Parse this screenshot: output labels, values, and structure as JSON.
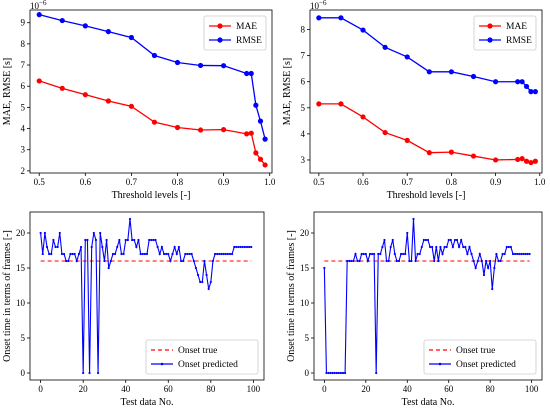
{
  "colors": {
    "mae": "#ff0000",
    "rmse": "#0000ff",
    "onset_true": "#ff0000",
    "onset_pred": "#0000ff"
  },
  "chart_data": [
    {
      "type": "line",
      "xlabel": "Threshold levels [-]",
      "ylabel": "MAE, RMSE [s]",
      "sci_label": "10",
      "sci_exp": "−6",
      "xlim": [
        0.48,
        1.005
      ],
      "ylim": [
        1.9,
        9.6
      ],
      "xticks": [
        0.5,
        0.6,
        0.7,
        0.8,
        0.9,
        1.0
      ],
      "xtick_labels": [
        "0.5",
        "0.6",
        "0.7",
        "0.8",
        "0.9",
        "1.0"
      ],
      "yticks": [
        2,
        3,
        4,
        5,
        6,
        7,
        8,
        9
      ],
      "ytick_labels": [
        "2",
        "3",
        "4",
        "5",
        "6",
        "7",
        "8",
        "9"
      ],
      "legend_position": "top-right",
      "x": [
        0.5,
        0.55,
        0.6,
        0.65,
        0.7,
        0.75,
        0.8,
        0.85,
        0.9,
        0.95,
        0.96,
        0.97,
        0.98,
        0.99
      ],
      "series": [
        {
          "name": "MAE",
          "color": "red",
          "values": [
            6.25,
            5.9,
            5.6,
            5.3,
            5.05,
            4.3,
            4.05,
            3.93,
            3.95,
            3.75,
            3.78,
            2.85,
            2.55,
            2.28
          ]
        },
        {
          "name": "RMSE",
          "color": "blue",
          "values": [
            9.38,
            9.1,
            8.85,
            8.58,
            8.3,
            7.45,
            7.12,
            6.98,
            6.97,
            6.6,
            6.6,
            5.1,
            4.35,
            3.5
          ]
        }
      ]
    },
    {
      "type": "line",
      "xlabel": "Threshold levels [-]",
      "ylabel": "MAE, RMSE [s]",
      "sci_label": "10",
      "sci_exp": "−6",
      "xlim": [
        0.48,
        1.005
      ],
      "ylim": [
        2.5,
        8.75
      ],
      "xticks": [
        0.5,
        0.6,
        0.7,
        0.8,
        0.9,
        1.0
      ],
      "xtick_labels": [
        "0.5",
        "0.6",
        "0.7",
        "0.8",
        "0.9",
        "1.0"
      ],
      "yticks": [
        3,
        4,
        5,
        6,
        7,
        8
      ],
      "ytick_labels": [
        "3",
        "4",
        "5",
        "6",
        "7",
        "8"
      ],
      "legend_position": "top-right",
      "x": [
        0.5,
        0.55,
        0.6,
        0.65,
        0.7,
        0.75,
        0.8,
        0.85,
        0.9,
        0.95,
        0.96,
        0.97,
        0.98,
        0.99
      ],
      "series": [
        {
          "name": "MAE",
          "color": "red",
          "values": [
            5.15,
            5.15,
            4.65,
            4.05,
            3.75,
            3.28,
            3.3,
            3.15,
            3.0,
            3.02,
            3.05,
            2.95,
            2.9,
            2.95
          ]
        },
        {
          "name": "RMSE",
          "color": "blue",
          "values": [
            8.45,
            8.45,
            7.98,
            7.32,
            6.95,
            6.38,
            6.38,
            6.2,
            6.0,
            6.0,
            6.0,
            5.82,
            5.62,
            5.62
          ]
        }
      ]
    },
    {
      "type": "line",
      "xlabel": "Test data No.",
      "ylabel": "Onset time in terms of frames [-]",
      "xlim": [
        -5,
        105
      ],
      "ylim": [
        -1,
        23
      ],
      "xticks": [
        0,
        20,
        40,
        60,
        80,
        100
      ],
      "xtick_labels": [
        "0",
        "20",
        "40",
        "60",
        "80",
        "100"
      ],
      "yticks": [
        0,
        5,
        10,
        15,
        20
      ],
      "ytick_labels": [
        "0",
        "5",
        "10",
        "15",
        "20"
      ],
      "legend_position": "bottom-right",
      "series": [
        {
          "name": "Onset true",
          "color": "red",
          "style": "dashed",
          "x": [
            0,
            99
          ],
          "values": [
            16,
            16
          ]
        },
        {
          "name": "Onset predicted",
          "color": "blue",
          "style": "solid-marker",
          "x": [
            0,
            1,
            2,
            3,
            4,
            5,
            6,
            7,
            8,
            9,
            10,
            11,
            12,
            13,
            14,
            15,
            16,
            17,
            18,
            19,
            20,
            21,
            22,
            23,
            24,
            25,
            26,
            27,
            28,
            29,
            30,
            31,
            32,
            33,
            34,
            35,
            36,
            37,
            38,
            39,
            40,
            41,
            42,
            43,
            44,
            45,
            46,
            47,
            48,
            49,
            50,
            51,
            52,
            53,
            54,
            55,
            56,
            57,
            58,
            59,
            60,
            61,
            62,
            63,
            64,
            65,
            66,
            67,
            68,
            69,
            70,
            71,
            72,
            73,
            74,
            75,
            76,
            77,
            78,
            79,
            80,
            81,
            82,
            83,
            84,
            85,
            86,
            87,
            88,
            89,
            90,
            91,
            92,
            93,
            94,
            95,
            96,
            97,
            98,
            99
          ],
          "values": [
            20,
            17,
            20,
            18,
            17,
            17,
            19,
            18,
            18,
            20,
            17,
            17,
            16,
            16,
            17,
            17,
            17,
            16,
            17,
            18,
            0,
            19,
            19,
            0,
            18,
            20,
            19,
            0,
            20,
            18,
            16,
            19,
            15,
            16,
            17,
            17,
            18,
            19,
            17,
            17,
            19,
            19,
            22,
            19,
            19,
            18,
            19,
            17,
            17,
            17,
            17,
            19,
            19,
            19,
            19,
            18,
            17,
            18,
            17,
            17,
            17,
            16,
            17,
            18,
            17,
            18,
            16,
            16,
            17,
            17,
            17,
            17,
            16,
            15,
            14,
            13,
            13,
            16,
            14,
            12,
            13,
            16,
            17,
            17,
            17,
            17,
            17,
            17,
            17,
            17,
            17,
            18,
            18,
            18,
            18,
            18,
            18,
            18,
            18,
            18
          ]
        }
      ]
    },
    {
      "type": "line",
      "xlabel": "Test data No.",
      "ylabel": "Onset time in terms of frames [-]",
      "xlim": [
        -5,
        105
      ],
      "ylim": [
        -1,
        23
      ],
      "xticks": [
        0,
        20,
        40,
        60,
        80,
        100
      ],
      "xtick_labels": [
        "0",
        "20",
        "40",
        "60",
        "80",
        "100"
      ],
      "yticks": [
        0,
        5,
        10,
        15,
        20
      ],
      "ytick_labels": [
        "0",
        "5",
        "10",
        "15",
        "20"
      ],
      "legend_position": "bottom-right",
      "series": [
        {
          "name": "Onset true",
          "color": "red",
          "style": "dashed",
          "x": [
            0,
            99
          ],
          "values": [
            16,
            16
          ]
        },
        {
          "name": "Onset predicted",
          "color": "blue",
          "style": "solid-marker",
          "x": [
            0,
            1,
            2,
            3,
            4,
            5,
            6,
            7,
            8,
            9,
            10,
            11,
            12,
            13,
            14,
            15,
            16,
            17,
            18,
            19,
            20,
            21,
            22,
            23,
            24,
            25,
            26,
            27,
            28,
            29,
            30,
            31,
            32,
            33,
            34,
            35,
            36,
            37,
            38,
            39,
            40,
            41,
            42,
            43,
            44,
            45,
            46,
            47,
            48,
            49,
            50,
            51,
            52,
            53,
            54,
            55,
            56,
            57,
            58,
            59,
            60,
            61,
            62,
            63,
            64,
            65,
            66,
            67,
            68,
            69,
            70,
            71,
            72,
            73,
            74,
            75,
            76,
            77,
            78,
            79,
            80,
            81,
            82,
            83,
            84,
            85,
            86,
            87,
            88,
            89,
            90,
            91,
            92,
            93,
            94,
            95,
            96,
            97,
            98,
            99
          ],
          "values": [
            15,
            0,
            0,
            0,
            0,
            0,
            0,
            0,
            0,
            0,
            0,
            16,
            16,
            16,
            16,
            17,
            16,
            16,
            17,
            17,
            17,
            16,
            17,
            17,
            17,
            0,
            17,
            17,
            18,
            19,
            16,
            16,
            18,
            19,
            17,
            16,
            16,
            17,
            17,
            17,
            20,
            16,
            16,
            22,
            16,
            17,
            17,
            18,
            19,
            19,
            19,
            18,
            18,
            16,
            18,
            16,
            18,
            17,
            18,
            18,
            19,
            19,
            18,
            19,
            19,
            18,
            19,
            18,
            18,
            17,
            18,
            17,
            16,
            15,
            16,
            17,
            16,
            14,
            16,
            15,
            16,
            12,
            15,
            17,
            16,
            16,
            17,
            17,
            18,
            18,
            18,
            17,
            17,
            17,
            17,
            17,
            17,
            17,
            17,
            17
          ]
        }
      ]
    }
  ]
}
